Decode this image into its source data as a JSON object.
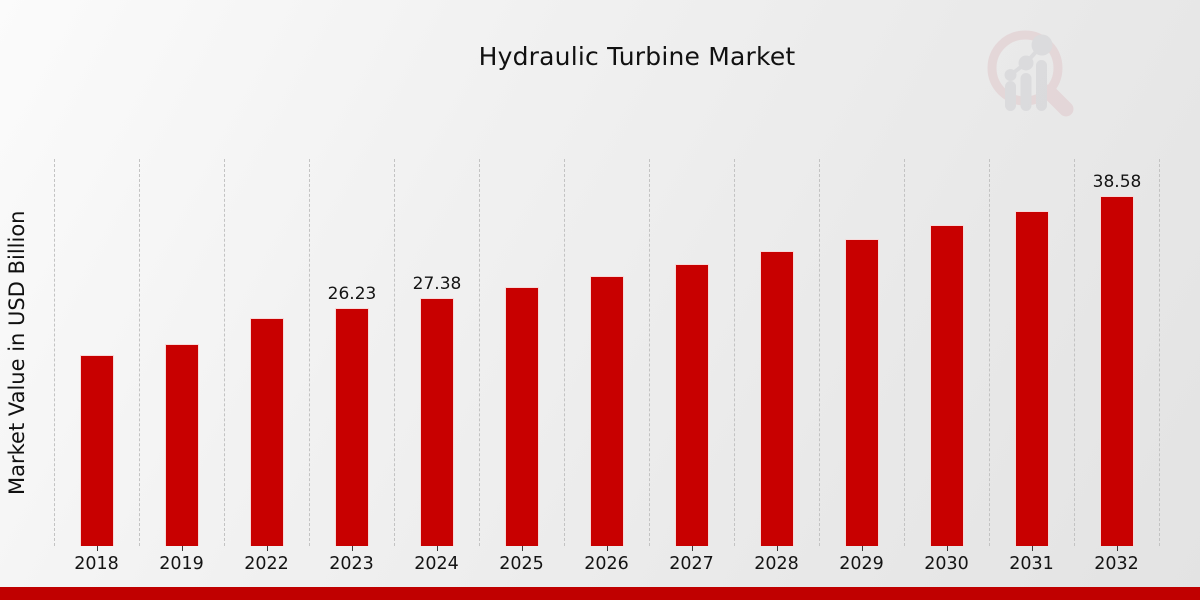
{
  "title": "Hydraulic Turbine Market",
  "branding": {
    "logo_icon": "magnifier-bar-chart-logo",
    "ring_color": "#debfc3",
    "element_color": "#c9c9cd"
  },
  "footer": {
    "accent_color": "#c00000"
  },
  "chart_data": {
    "type": "bar",
    "title": "Hydraulic Turbine Market",
    "xlabel": "",
    "ylabel": "Market Value in USD Billion",
    "categories": [
      "2018",
      "2019",
      "2022",
      "2023",
      "2024",
      "2025",
      "2026",
      "2027",
      "2028",
      "2029",
      "2030",
      "2031",
      "2032"
    ],
    "values": [
      21.1,
      22.3,
      25.2,
      26.23,
      27.38,
      28.58,
      29.83,
      31.14,
      32.5,
      33.92,
      35.41,
      36.96,
      38.58
    ],
    "data_labels": [
      "",
      "",
      "",
      "26.23",
      "27.38",
      "",
      "",
      "",
      "",
      "",
      "",
      "",
      "38.58"
    ],
    "bar_color": "#c80000",
    "ylim": [
      0,
      42.7
    ],
    "grid": "vertical-dashed",
    "gridline_color": "#c3c3c3",
    "legend": "none"
  }
}
